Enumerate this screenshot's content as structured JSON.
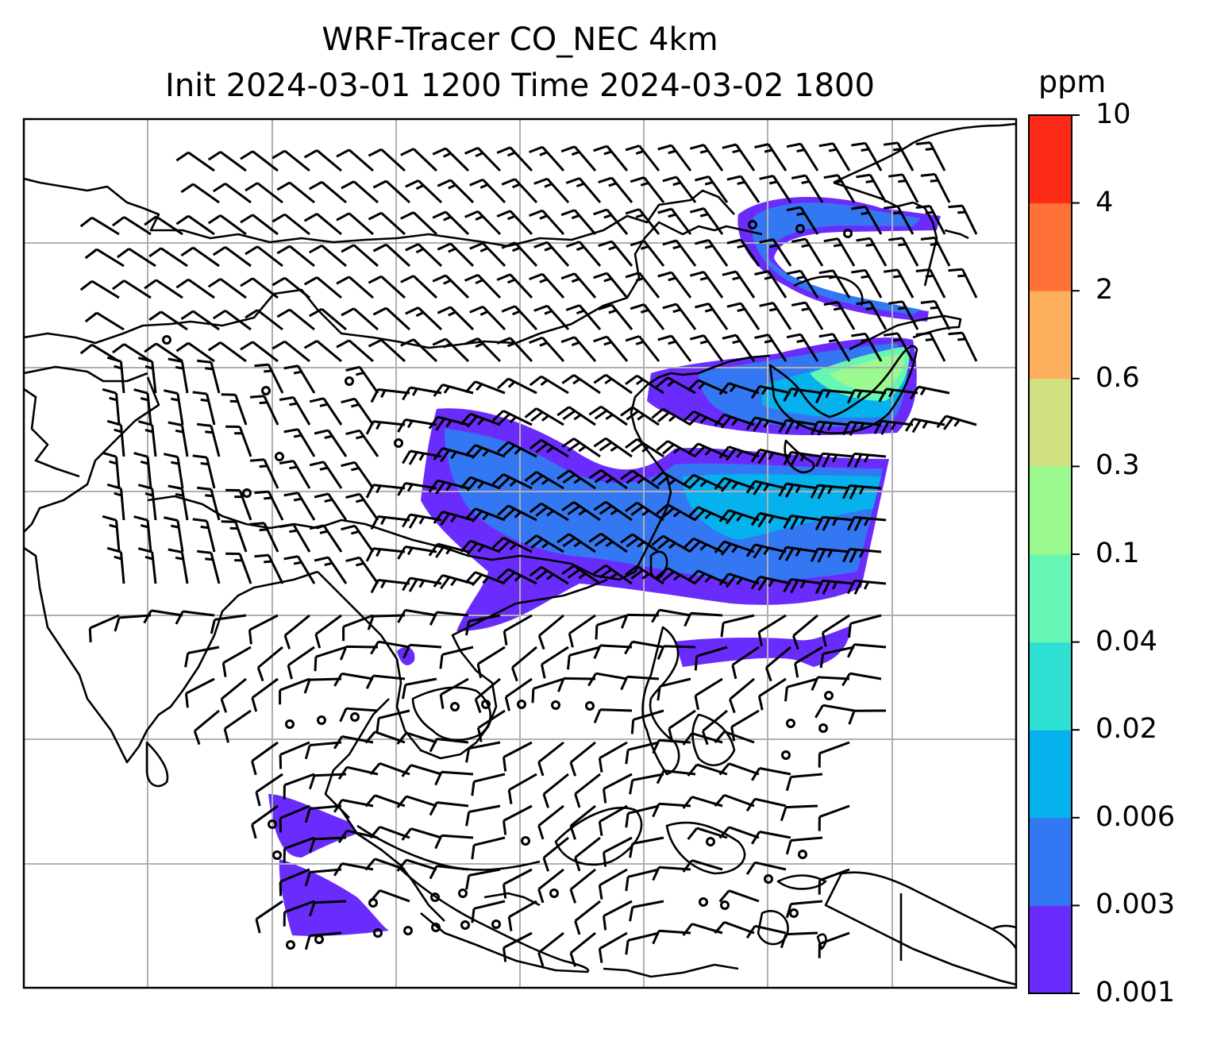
{
  "title": {
    "line1": "WRF-Tracer CO_NEC 4km",
    "line2": "Init 2024-03-01 1200 Time 2024-03-02 1800"
  },
  "colorbar": {
    "unit": "ppm",
    "levels": [
      "0.001",
      "0.003",
      "0.006",
      "0.02",
      "0.04",
      "0.1",
      "0.3",
      "0.6",
      "2",
      "4",
      "10"
    ],
    "colors": [
      "#6a2cfd",
      "#3477f2",
      "#05b2ee",
      "#2ee0d2",
      "#66f7b5",
      "#9afa90",
      "#cfe181",
      "#fdaf5d",
      "#fe7237",
      "#fd2a17"
    ]
  },
  "map": {
    "frame_color": "#000000",
    "grid_color": "#b0b0b0",
    "wind_symbol": "wind-barb",
    "calm_symbol": "circle"
  }
}
